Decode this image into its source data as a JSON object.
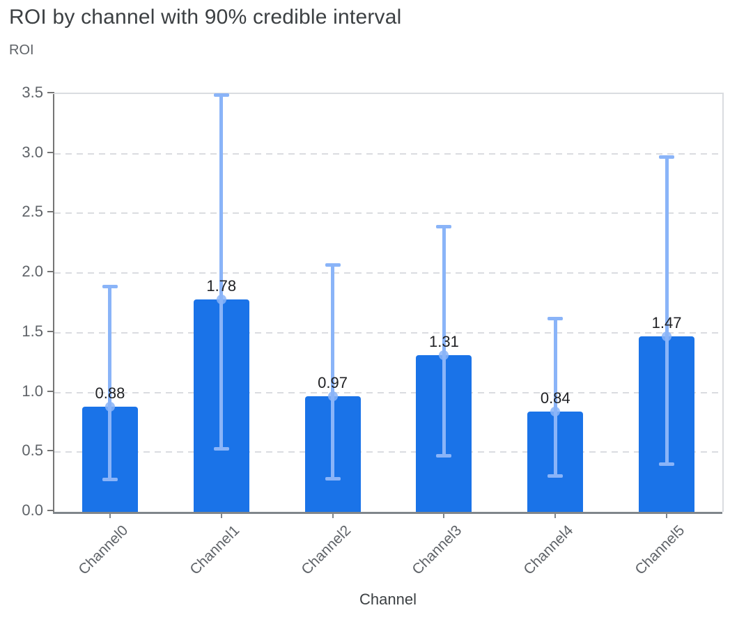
{
  "chart_data": {
    "type": "bar",
    "title": "ROI by channel with 90% credible interval",
    "ylabel": "ROI",
    "xlabel": "Channel",
    "ci_level": "90%",
    "categories": [
      "Channel0",
      "Channel1",
      "Channel2",
      "Channel3",
      "Channel4",
      "Channel5"
    ],
    "values": [
      0.88,
      1.78,
      0.97,
      1.31,
      0.84,
      1.47
    ],
    "value_labels": [
      "0.88",
      "1.78",
      "0.97",
      "1.31",
      "0.84",
      "1.47"
    ],
    "ci_lower": [
      0.27,
      0.53,
      0.28,
      0.47,
      0.3,
      0.4
    ],
    "ci_upper": [
      1.89,
      3.49,
      2.07,
      2.39,
      1.62,
      2.97
    ],
    "ylim": [
      0,
      3.5
    ],
    "ytick_labels": [
      "0.0",
      "0.5",
      "1.0",
      "1.5",
      "2.0",
      "2.5",
      "3.0",
      "3.5"
    ],
    "ytick_values": [
      0.0,
      0.5,
      1.0,
      1.5,
      2.0,
      2.5,
      3.0,
      3.5
    ],
    "grid": "dashed-horizontal",
    "legend": "none",
    "colors": {
      "bar": "#1a73e8",
      "interval": "#8ab4f8",
      "title": "#3c4043",
      "axis_label": "#5f6368",
      "tick_label": "#5f6368",
      "data_label": "#202124",
      "gridline": "#dadce0",
      "axis_line": "#80868b"
    }
  }
}
